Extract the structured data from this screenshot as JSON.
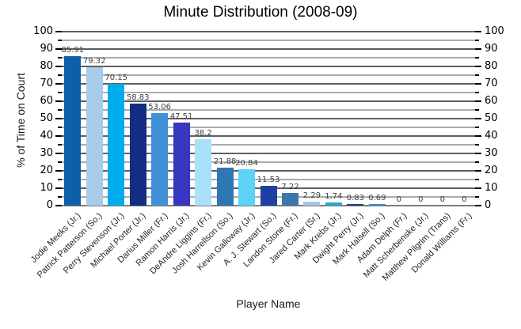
{
  "chart_data": {
    "type": "bar",
    "title": "Minute Distribution (2008-09)",
    "xlabel": "Player Name",
    "ylabel": "% of Time on Court",
    "ylim": [
      0,
      100
    ],
    "ytick_major_step": 10,
    "ytick_minor_step": 5,
    "grid": true,
    "axes_mirrored": true,
    "legend": "none",
    "categories": [
      "Jodie Meeks (Jr.)",
      "Patrick Patterson (So.)",
      "Perry Stevenson (Jr.)",
      "Michael Porter (Jr.)",
      "Darius Miller (Fr.)",
      "Ramon Harris (Jr.)",
      "DeAndre Liggins (Fr.)",
      "Josh Harrellson (So.)",
      "Kevin Galloway (Jr.)",
      "A. J. Stewart (So.)",
      "Landon Stone (Fr.)",
      "Jared Carter (Sr.)",
      "Mark Krebs (Jr.)",
      "Dwight Perry (Jr.)",
      "Mark Halsell (So.)",
      "Adam Delph (Fr.)",
      "Matt Scherbenske (Jr.)",
      "Matthew Pilgrim (Trans)",
      "Donald Williams (Fr.)"
    ],
    "values": [
      85.91,
      79.32,
      70.15,
      58.83,
      53.06,
      47.51,
      38.2,
      21.88,
      20.84,
      11.53,
      7.22,
      2.29,
      1.74,
      0.83,
      0.69,
      0,
      0,
      0,
      0
    ],
    "value_labels": [
      "85.91",
      "79.32",
      "70.15",
      "58.83",
      "53.06",
      "47.51",
      "38.2",
      "21.88",
      "20.84",
      "11.53",
      "7.22",
      "2.29",
      "1.74",
      "0.83",
      "0.69",
      "0",
      "0",
      "0",
      "0"
    ],
    "bar_colors": [
      "#0d60a8",
      "#a7cbe9",
      "#00aceb",
      "#142c82",
      "#4190d6",
      "#3636c0",
      "#a9e1f8",
      "#2e78b2",
      "#5dd1f6",
      "#1e40a5",
      "#3a77ab",
      "#a9c4df",
      "#28a8da",
      "#22418c",
      "#4489c8",
      "#4489c8",
      "#4489c8",
      "#4489c8",
      "#4489c8"
    ],
    "grid_major_color": "#5f5f5f",
    "grid_minor_color": "#ababab"
  }
}
